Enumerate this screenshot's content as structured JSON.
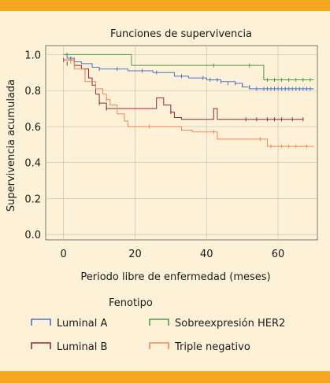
{
  "colors": {
    "background": "#fdf2d8",
    "band": "#f6a623",
    "grid": "#c8c2b4",
    "axis": "#555555"
  },
  "chart_data": {
    "type": "line",
    "title": "Funciones de supervivencia",
    "xlabel": "Periodo libre de enfermedad (meses)",
    "ylabel": "Supervivencia acumulada",
    "xlim": [
      -5,
      71
    ],
    "ylim": [
      -0.03,
      1.05
    ],
    "x_ticks": [
      {
        "value": 0,
        "label": "0"
      },
      {
        "value": 20,
        "label": "20"
      },
      {
        "value": 40,
        "label": "40"
      },
      {
        "value": 60,
        "label": "60"
      }
    ],
    "y_ticks": [
      {
        "value": 0.0,
        "label": "0.0"
      },
      {
        "value": 0.2,
        "label": "0.2"
      },
      {
        "value": 0.4,
        "label": "0.4"
      },
      {
        "value": 0.6,
        "label": "0.6"
      },
      {
        "value": 0.8,
        "label": "0.8"
      },
      {
        "value": 1.0,
        "label": "1.0"
      }
    ],
    "grid": true,
    "legend_title": "Fenotipo",
    "legend_position": "bottom",
    "series": [
      {
        "name": "Luminal A",
        "color": "#4a74c9",
        "steps": [
          [
            0,
            1.0
          ],
          [
            1,
            0.98
          ],
          [
            3,
            0.96
          ],
          [
            5,
            0.95
          ],
          [
            8,
            0.93
          ],
          [
            10,
            0.92
          ],
          [
            18,
            0.91
          ],
          [
            25,
            0.9
          ],
          [
            31,
            0.88
          ],
          [
            35,
            0.87
          ],
          [
            40,
            0.86
          ],
          [
            44,
            0.85
          ],
          [
            48,
            0.84
          ],
          [
            50,
            0.82
          ],
          [
            52,
            0.81
          ],
          [
            70,
            0.81
          ]
        ],
        "censored": [
          [
            2,
            0.98
          ],
          [
            10,
            0.92
          ],
          [
            15,
            0.92
          ],
          [
            22,
            0.91
          ],
          [
            26,
            0.9
          ],
          [
            33,
            0.88
          ],
          [
            39,
            0.87
          ],
          [
            41,
            0.86
          ],
          [
            43,
            0.86
          ],
          [
            44,
            0.85
          ],
          [
            46,
            0.84
          ],
          [
            48,
            0.84
          ],
          [
            50,
            0.83
          ],
          [
            52,
            0.82
          ],
          [
            54,
            0.81
          ],
          [
            56,
            0.81
          ],
          [
            57,
            0.81
          ],
          [
            58,
            0.81
          ],
          [
            59,
            0.81
          ],
          [
            60,
            0.81
          ],
          [
            61,
            0.81
          ],
          [
            62,
            0.81
          ],
          [
            63,
            0.81
          ],
          [
            64,
            0.81
          ],
          [
            65,
            0.81
          ],
          [
            66,
            0.81
          ],
          [
            67,
            0.81
          ],
          [
            68,
            0.81
          ],
          [
            69,
            0.81
          ]
        ]
      },
      {
        "name": "Sobreexpresión HER2",
        "color": "#4e9a46",
        "steps": [
          [
            0,
            1.0
          ],
          [
            19,
            1.0
          ],
          [
            19,
            0.94
          ],
          [
            55,
            0.94
          ],
          [
            56,
            0.86
          ],
          [
            70,
            0.86
          ]
        ],
        "censored": [
          [
            1,
            1.0
          ],
          [
            42,
            0.94
          ],
          [
            52,
            0.94
          ],
          [
            57,
            0.86
          ],
          [
            59,
            0.86
          ],
          [
            61,
            0.86
          ],
          [
            63,
            0.86
          ],
          [
            65,
            0.86
          ],
          [
            67,
            0.86
          ],
          [
            69,
            0.86
          ]
        ]
      },
      {
        "name": "Luminal B",
        "color": "#8e2a34",
        "steps": [
          [
            0,
            0.97
          ],
          [
            3,
            0.94
          ],
          [
            5,
            0.92
          ],
          [
            7,
            0.87
          ],
          [
            8,
            0.83
          ],
          [
            9,
            0.78
          ],
          [
            10,
            0.73
          ],
          [
            12,
            0.7
          ],
          [
            13,
            0.7
          ],
          [
            19,
            0.7
          ],
          [
            26,
            0.7
          ],
          [
            26,
            0.76
          ],
          [
            28,
            0.72
          ],
          [
            30,
            0.68
          ],
          [
            31,
            0.65
          ],
          [
            33,
            0.64
          ],
          [
            42,
            0.64
          ],
          [
            42,
            0.7
          ],
          [
            43,
            0.64
          ],
          [
            67,
            0.64
          ]
        ],
        "censored": [
          [
            0,
            0.97
          ],
          [
            1,
            0.95
          ],
          [
            6,
            0.9
          ],
          [
            10,
            0.73
          ],
          [
            12,
            0.7
          ],
          [
            30,
            0.68
          ],
          [
            51,
            0.64
          ],
          [
            54,
            0.64
          ],
          [
            57,
            0.64
          ],
          [
            59,
            0.64
          ],
          [
            61,
            0.64
          ],
          [
            64,
            0.64
          ],
          [
            67,
            0.64
          ]
        ]
      },
      {
        "name": "Triple negativo",
        "color": "#f0875a",
        "steps": [
          [
            0,
            0.97
          ],
          [
            3,
            0.92
          ],
          [
            6,
            0.85
          ],
          [
            9,
            0.81
          ],
          [
            11,
            0.78
          ],
          [
            12,
            0.75
          ],
          [
            13,
            0.72
          ],
          [
            15,
            0.67
          ],
          [
            17,
            0.63
          ],
          [
            18,
            0.6
          ],
          [
            33,
            0.6
          ],
          [
            33,
            0.58
          ],
          [
            36,
            0.57
          ],
          [
            43,
            0.57
          ],
          [
            43,
            0.53
          ],
          [
            56,
            0.53
          ],
          [
            57,
            0.49
          ],
          [
            70,
            0.49
          ]
        ],
        "censored": [
          [
            2,
            0.96
          ],
          [
            6,
            0.86
          ],
          [
            12,
            0.75
          ],
          [
            24,
            0.6
          ],
          [
            42,
            0.57
          ],
          [
            55,
            0.53
          ],
          [
            58,
            0.49
          ],
          [
            61,
            0.49
          ],
          [
            63,
            0.49
          ],
          [
            65,
            0.49
          ],
          [
            68,
            0.49
          ]
        ]
      }
    ]
  }
}
